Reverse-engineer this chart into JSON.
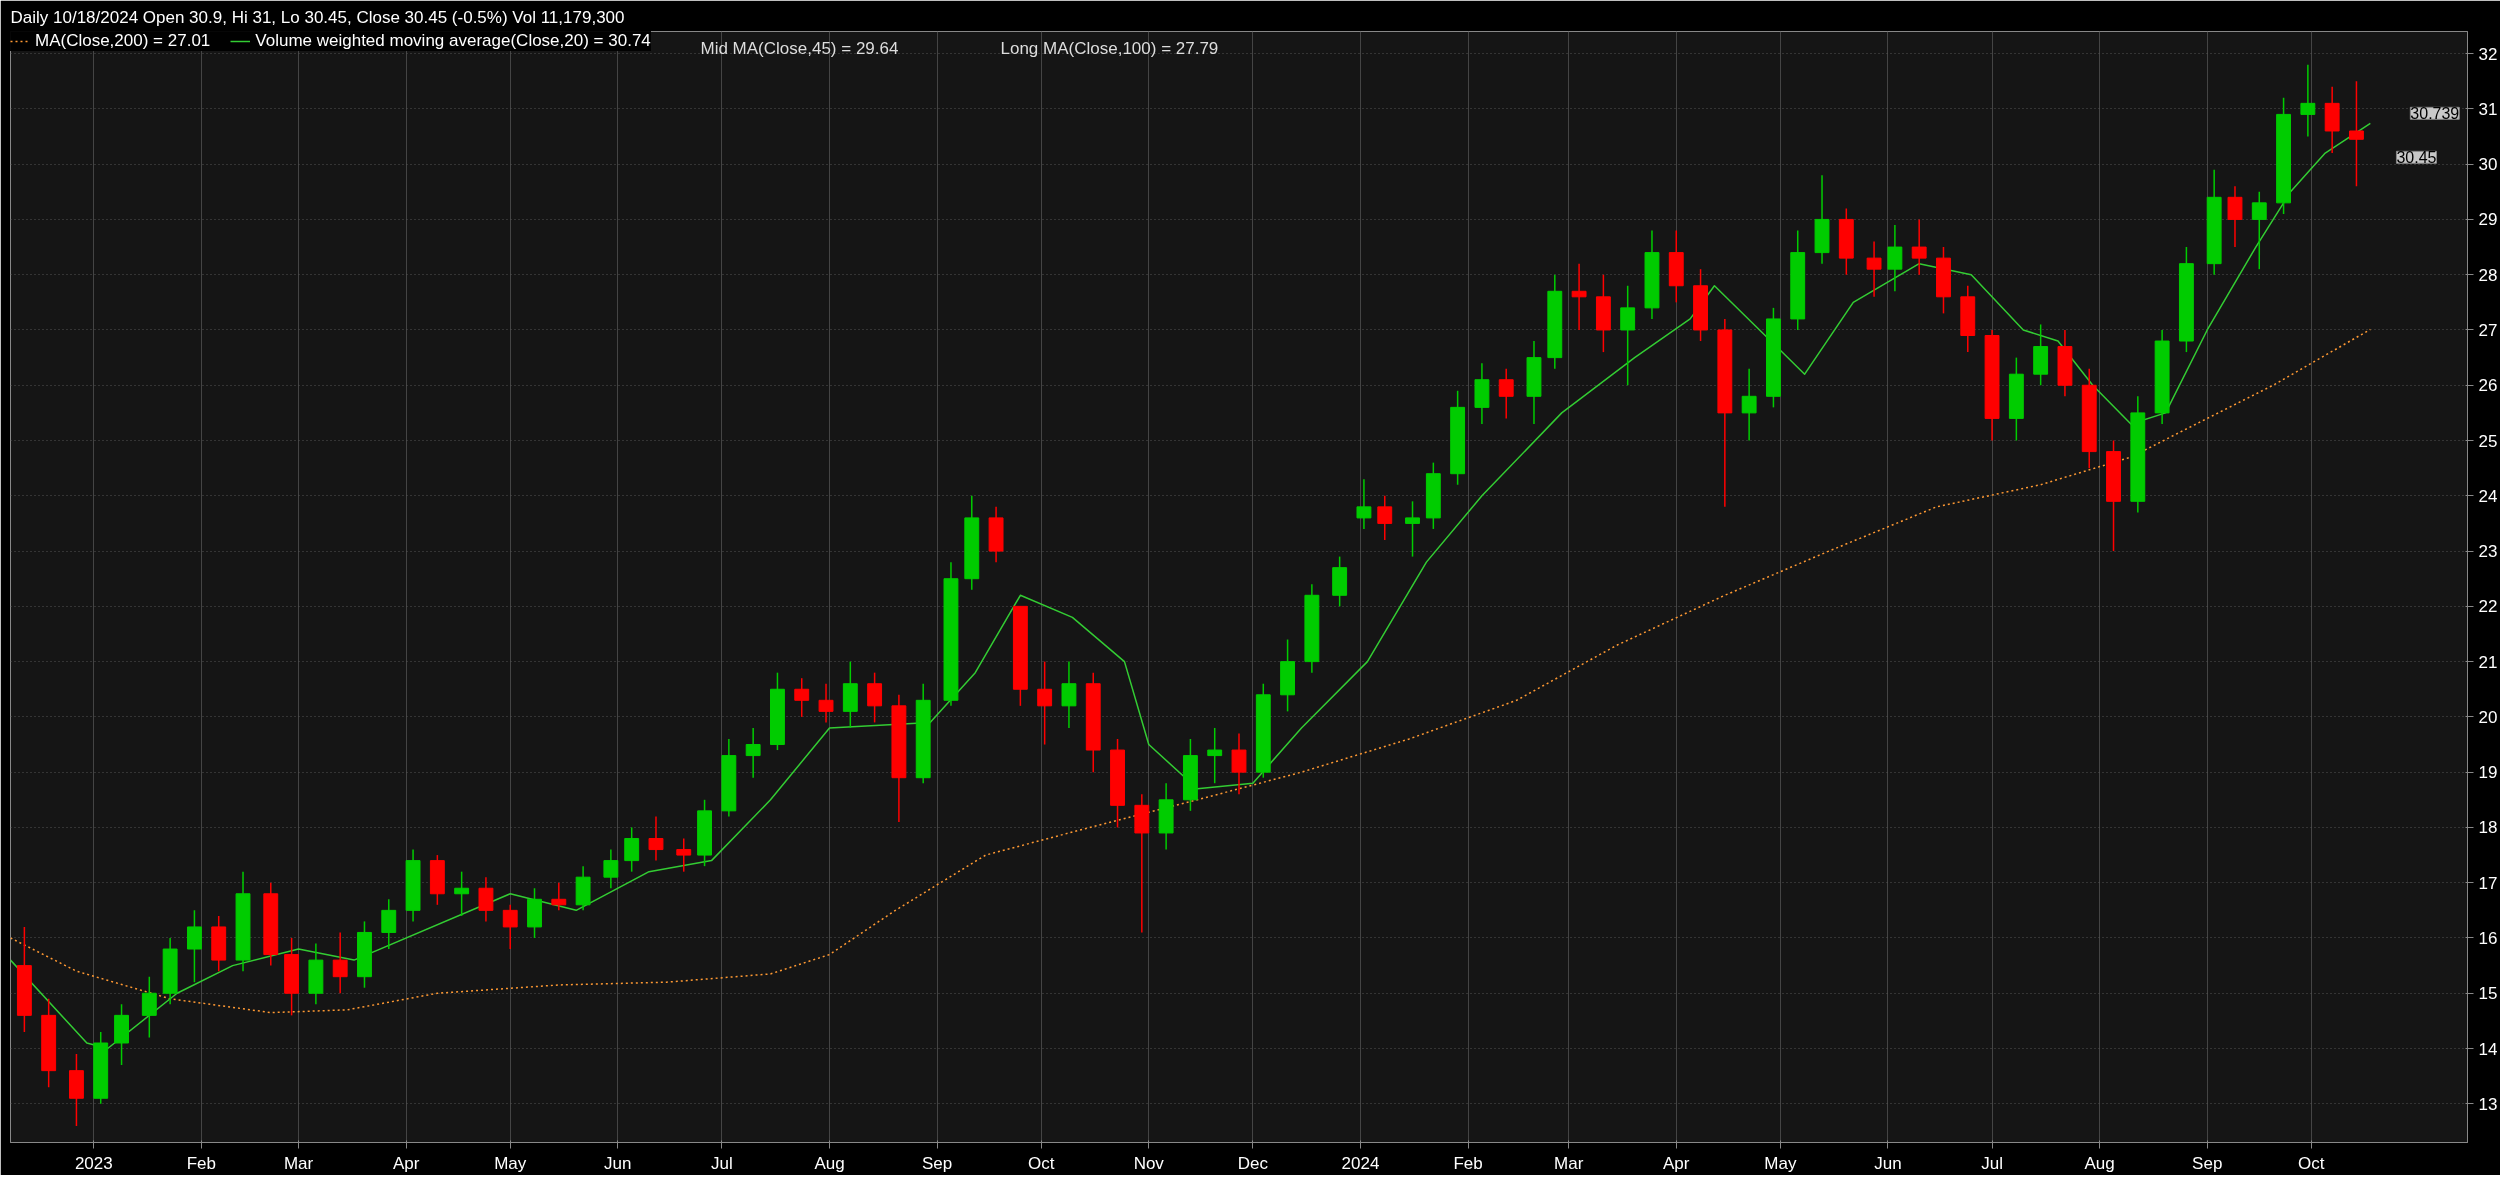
{
  "chart_data": {
    "type": "candlestick",
    "title": "Daily 10/18/2024 Open 30.9, Hi 31, Lo 30.45, Close 30.45 (-0.5%) Vol 11,179,300",
    "x": [
      "2022-12-12",
      "2022-12-19",
      "2022-12-27",
      "2023-01-03",
      "2023-01-09",
      "2023-01-17",
      "2023-01-23",
      "2023-01-30",
      "2023-02-06",
      "2023-02-13",
      "2023-02-21",
      "2023-02-27",
      "2023-03-06",
      "2023-03-13",
      "2023-03-20",
      "2023-03-27",
      "2023-04-03",
      "2023-04-10",
      "2023-04-17",
      "2023-04-24",
      "2023-05-01",
      "2023-05-08",
      "2023-05-15",
      "2023-05-22",
      "2023-05-30",
      "2023-06-05",
      "2023-06-12",
      "2023-06-20",
      "2023-06-26",
      "2023-07-03",
      "2023-07-10",
      "2023-07-17",
      "2023-07-24",
      "2023-07-31",
      "2023-08-07",
      "2023-08-14",
      "2023-08-21",
      "2023-08-28",
      "2023-09-05",
      "2023-09-11",
      "2023-09-18",
      "2023-09-25",
      "2023-10-02",
      "2023-10-09",
      "2023-10-16",
      "2023-10-23",
      "2023-10-30",
      "2023-11-06",
      "2023-11-13",
      "2023-11-20",
      "2023-11-27",
      "2023-12-04",
      "2023-12-11",
      "2023-12-18",
      "2023-12-26",
      "2024-01-02",
      "2024-01-08",
      "2024-01-16",
      "2024-01-22",
      "2024-01-29",
      "2024-02-05",
      "2024-02-12",
      "2024-02-20",
      "2024-02-26",
      "2024-03-04",
      "2024-03-11",
      "2024-03-18",
      "2024-03-25",
      "2024-04-01",
      "2024-04-08",
      "2024-04-15",
      "2024-04-22",
      "2024-04-29",
      "2024-05-06",
      "2024-05-13",
      "2024-05-20",
      "2024-05-28",
      "2024-06-03",
      "2024-06-10",
      "2024-06-17",
      "2024-06-24",
      "2024-07-01",
      "2024-07-08",
      "2024-07-15",
      "2024-07-22",
      "2024-07-29",
      "2024-08-05",
      "2024-08-12",
      "2024-08-19",
      "2024-08-26",
      "2024-09-03",
      "2024-09-09",
      "2024-09-16",
      "2024-09-23",
      "2024-09-30",
      "2024-10-07",
      "2024-10-14"
    ],
    "ohlc": [
      [
        15.5,
        16.2,
        14.3,
        14.6
      ],
      [
        14.6,
        14.9,
        13.3,
        13.6
      ],
      [
        13.6,
        13.9,
        12.6,
        13.1
      ],
      [
        13.1,
        14.3,
        13.0,
        14.1
      ],
      [
        14.1,
        14.8,
        13.7,
        14.6
      ],
      [
        14.6,
        15.3,
        14.2,
        15.0
      ],
      [
        15.0,
        16.0,
        14.8,
        15.8
      ],
      [
        15.8,
        16.5,
        15.2,
        16.2
      ],
      [
        16.2,
        16.4,
        15.4,
        15.6
      ],
      [
        15.6,
        17.2,
        15.4,
        16.8
      ],
      [
        16.8,
        17.0,
        15.5,
        15.7
      ],
      [
        15.7,
        16.0,
        14.6,
        15.0
      ],
      [
        15.0,
        15.9,
        14.8,
        15.6
      ],
      [
        15.6,
        16.1,
        15.0,
        15.3
      ],
      [
        15.3,
        16.3,
        15.1,
        16.1
      ],
      [
        16.1,
        16.7,
        15.8,
        16.5
      ],
      [
        16.5,
        17.6,
        16.3,
        17.4
      ],
      [
        17.4,
        17.5,
        16.6,
        16.8
      ],
      [
        16.8,
        17.2,
        16.4,
        16.9
      ],
      [
        16.9,
        17.1,
        16.3,
        16.5
      ],
      [
        16.5,
        16.6,
        15.8,
        16.2
      ],
      [
        16.2,
        16.9,
        16.0,
        16.7
      ],
      [
        16.7,
        17.0,
        16.5,
        16.6
      ],
      [
        16.6,
        17.3,
        16.5,
        17.1
      ],
      [
        17.1,
        17.6,
        16.9,
        17.4
      ],
      [
        17.4,
        18.0,
        17.2,
        17.8
      ],
      [
        17.8,
        18.2,
        17.4,
        17.6
      ],
      [
        17.6,
        17.8,
        17.2,
        17.5
      ],
      [
        17.5,
        18.5,
        17.3,
        18.3
      ],
      [
        18.3,
        19.6,
        18.2,
        19.3
      ],
      [
        19.3,
        19.8,
        18.9,
        19.5
      ],
      [
        19.5,
        20.8,
        19.4,
        20.5
      ],
      [
        20.5,
        20.7,
        20.0,
        20.3
      ],
      [
        20.3,
        20.6,
        19.9,
        20.1
      ],
      [
        20.1,
        21.0,
        19.8,
        20.6
      ],
      [
        20.6,
        20.8,
        19.9,
        20.2
      ],
      [
        20.2,
        20.4,
        18.1,
        18.9
      ],
      [
        18.9,
        20.6,
        18.8,
        20.3
      ],
      [
        20.3,
        22.8,
        20.2,
        22.5
      ],
      [
        22.5,
        24.0,
        22.3,
        23.6
      ],
      [
        23.6,
        23.8,
        22.8,
        23.0
      ],
      [
        22.0,
        22.0,
        20.2,
        20.5
      ],
      [
        20.5,
        21.0,
        19.5,
        20.2
      ],
      [
        20.2,
        21.0,
        19.8,
        20.6
      ],
      [
        20.6,
        20.8,
        19.0,
        19.4
      ],
      [
        19.4,
        19.6,
        18.0,
        18.4
      ],
      [
        18.4,
        18.6,
        16.1,
        17.9
      ],
      [
        17.9,
        18.8,
        17.6,
        18.5
      ],
      [
        18.5,
        19.6,
        18.3,
        19.3
      ],
      [
        19.3,
        19.8,
        18.8,
        19.4
      ],
      [
        19.4,
        19.7,
        18.6,
        19.0
      ],
      [
        19.0,
        20.6,
        18.9,
        20.4
      ],
      [
        20.4,
        21.4,
        20.1,
        21.0
      ],
      [
        21.0,
        22.4,
        20.8,
        22.2
      ],
      [
        22.2,
        22.9,
        22.0,
        22.7
      ],
      [
        23.6,
        24.3,
        23.4,
        23.8
      ],
      [
        23.8,
        24.0,
        23.2,
        23.5
      ],
      [
        23.5,
        23.9,
        22.9,
        23.6
      ],
      [
        23.6,
        24.6,
        23.4,
        24.4
      ],
      [
        24.4,
        25.9,
        24.2,
        25.6
      ],
      [
        25.6,
        26.4,
        25.3,
        26.1
      ],
      [
        26.1,
        26.3,
        25.4,
        25.8
      ],
      [
        25.8,
        26.8,
        25.3,
        26.5
      ],
      [
        26.5,
        28.0,
        26.3,
        27.7
      ],
      [
        27.7,
        28.2,
        27.0,
        27.6
      ],
      [
        27.6,
        28.0,
        26.6,
        27.0
      ],
      [
        27.0,
        27.8,
        26.0,
        27.4
      ],
      [
        27.4,
        28.8,
        27.2,
        28.4
      ],
      [
        28.4,
        28.8,
        27.5,
        27.8
      ],
      [
        27.8,
        28.1,
        26.8,
        27.0
      ],
      [
        27.0,
        27.2,
        23.8,
        25.5
      ],
      [
        25.5,
        26.3,
        25.0,
        25.8
      ],
      [
        25.8,
        27.4,
        25.6,
        27.2
      ],
      [
        27.2,
        28.8,
        27.0,
        28.4
      ],
      [
        28.4,
        29.8,
        28.2,
        29.0
      ],
      [
        29.0,
        29.2,
        28.0,
        28.3
      ],
      [
        28.3,
        28.6,
        27.6,
        28.1
      ],
      [
        28.1,
        28.9,
        27.7,
        28.5
      ],
      [
        28.5,
        29.0,
        28.0,
        28.3
      ],
      [
        28.3,
        28.5,
        27.3,
        27.6
      ],
      [
        27.6,
        27.8,
        26.6,
        26.9
      ],
      [
        26.9,
        27.0,
        25.0,
        25.4
      ],
      [
        25.4,
        26.5,
        25.0,
        26.2
      ],
      [
        26.2,
        27.1,
        26.0,
        26.7
      ],
      [
        26.7,
        27.0,
        25.8,
        26.0
      ],
      [
        26.0,
        26.3,
        24.5,
        24.8
      ],
      [
        24.8,
        25.0,
        23.0,
        23.9
      ],
      [
        23.9,
        25.8,
        23.7,
        25.5
      ],
      [
        25.5,
        27.0,
        25.3,
        26.8
      ],
      [
        26.8,
        28.5,
        26.6,
        28.2
      ],
      [
        28.2,
        29.9,
        28.0,
        29.4
      ],
      [
        29.4,
        29.6,
        28.5,
        29.0
      ],
      [
        29.0,
        29.5,
        28.1,
        29.3
      ],
      [
        29.3,
        31.2,
        29.1,
        30.9
      ],
      [
        30.9,
        31.8,
        30.5,
        31.1
      ],
      [
        31.1,
        31.4,
        30.2,
        30.6
      ],
      [
        30.6,
        31.5,
        29.6,
        30.45
      ]
    ],
    "colors": [
      "#ff0000",
      "#ff0000",
      "#ff0000",
      "#00cc00",
      "#00cc00",
      "#00cc00",
      "#00cc00",
      "#00cc00",
      "#ff0000",
      "#00cc00",
      "#ff0000",
      "#ff0000",
      "#00cc00",
      "#ff0000",
      "#00cc00",
      "#00cc00",
      "#00cc00",
      "#ff0000",
      "#00cc00",
      "#ff0000",
      "#ff0000",
      "#00cc00",
      "#ff0000",
      "#00cc00",
      "#00cc00",
      "#00cc00",
      "#ff0000",
      "#ff0000",
      "#00cc00",
      "#00cc00",
      "#00cc00",
      "#00cc00",
      "#ff0000",
      "#ff0000",
      "#00cc00",
      "#ff0000",
      "#ff0000",
      "#00cc00",
      "#00cc00",
      "#00cc00",
      "#ff0000",
      "#ff0000",
      "#ff0000",
      "#00cc00",
      "#ff0000",
      "#ff0000",
      "#ff0000",
      "#00cc00",
      "#00cc00",
      "#00cc00",
      "#ff0000",
      "#00cc00",
      "#00cc00",
      "#00cc00",
      "#00cc00",
      "#00cc00",
      "#ff0000",
      "#00cc00",
      "#00cc00",
      "#00cc00",
      "#00cc00",
      "#ff0000",
      "#00cc00",
      "#00cc00",
      "#ff0000",
      "#ff0000",
      "#00cc00",
      "#00cc00",
      "#ff0000",
      "#ff0000",
      "#ff0000",
      "#00cc00",
      "#00cc00",
      "#00cc00",
      "#00cc00",
      "#ff0000",
      "#ff0000",
      "#00cc00",
      "#ff0000",
      "#ff0000",
      "#ff0000",
      "#ff0000",
      "#00cc00",
      "#00cc00",
      "#ff0000",
      "#ff0000",
      "#ff0000",
      "#00cc00",
      "#00cc00",
      "#00cc00",
      "#00cc00",
      "#ff0000",
      "#00cc00",
      "#00cc00",
      "#00cc00",
      "#ff0000",
      "#ff0000"
    ],
    "series": [
      {
        "name": "MA(Close,200) = 27.01",
        "type": "line",
        "line_style": "dotted",
        "color": "#ff9933",
        "x": [
          "2022-12-08",
          "2022-12-27",
          "2023-01-23",
          "2023-02-21",
          "2023-03-15",
          "2023-04-10",
          "2023-05-15",
          "2023-06-15",
          "2023-07-15",
          "2023-08-01",
          "2023-08-20",
          "2023-09-15",
          "2023-10-15",
          "2023-11-15",
          "2023-12-15",
          "2024-01-15",
          "2024-02-15",
          "2024-03-15",
          "2024-04-15",
          "2024-05-15",
          "2024-06-15",
          "2024-07-15",
          "2024-08-10",
          "2024-09-01",
          "2024-09-20",
          "2024-10-18"
        ],
        "values": [
          16.0,
          15.4,
          14.9,
          14.65,
          14.7,
          15.0,
          15.15,
          15.2,
          15.35,
          15.7,
          16.5,
          17.5,
          18.0,
          18.5,
          19.0,
          19.6,
          20.3,
          21.3,
          22.2,
          23.0,
          23.8,
          24.2,
          24.7,
          25.4,
          26.0,
          27.01
        ]
      },
      {
        "name": "Volume weighted moving average(Close,20) = 30.74",
        "type": "line",
        "line_style": "solid",
        "color": "#33cc33",
        "x": [
          "2022-12-08",
          "2022-12-30",
          "2023-01-05",
          "2023-01-25",
          "2023-02-10",
          "2023-03-01",
          "2023-03-17",
          "2023-05-01",
          "2023-05-20",
          "2023-06-10",
          "2023-06-28",
          "2023-07-15",
          "2023-08-01",
          "2023-08-30",
          "2023-09-12",
          "2023-09-25",
          "2023-10-10",
          "2023-10-25",
          "2023-11-01",
          "2023-11-15",
          "2023-12-01",
          "2023-12-15",
          "2024-01-03",
          "2024-01-20",
          "2024-02-05",
          "2024-02-28",
          "2024-03-20",
          "2024-04-05",
          "2024-04-12",
          "2024-04-25",
          "2024-05-08",
          "2024-05-22",
          "2024-06-10",
          "2024-06-25",
          "2024-07-10",
          "2024-07-20",
          "2024-07-30",
          "2024-08-10",
          "2024-08-20",
          "2024-09-01",
          "2024-09-15",
          "2024-09-25",
          "2024-10-05",
          "2024-10-18"
        ],
        "values": [
          15.6,
          14.1,
          14.0,
          15.0,
          15.5,
          15.8,
          15.6,
          16.8,
          16.5,
          17.2,
          17.4,
          18.5,
          19.8,
          19.9,
          20.8,
          22.2,
          21.8,
          21.0,
          19.5,
          18.7,
          18.8,
          19.8,
          21.0,
          22.8,
          24.0,
          25.5,
          26.5,
          27.2,
          27.8,
          27.0,
          26.2,
          27.5,
          28.2,
          28.0,
          27.0,
          26.8,
          26.0,
          25.3,
          25.5,
          27.0,
          28.5,
          29.5,
          30.2,
          30.74
        ]
      }
    ],
    "annotations": [
      "Mid MA(Close,45) = 29.64",
      "Long MA(Close,100) = 27.79",
      {
        "text": "30.739",
        "x": "2024-10-18",
        "y": 30.739
      },
      {
        "text": "30.45",
        "x": "2024-10-14",
        "y": 30.45
      }
    ],
    "xlim": [
      "2022-12-08",
      "2024-11-15"
    ],
    "xticks": [
      {
        "value": "2023-01-01",
        "label": "2023"
      },
      {
        "value": "2023-02-01",
        "label": "Feb"
      },
      {
        "value": "2023-03-01",
        "label": "Mar"
      },
      {
        "value": "2023-04-01",
        "label": "Apr"
      },
      {
        "value": "2023-05-01",
        "label": "May"
      },
      {
        "value": "2023-06-01",
        "label": "Jun"
      },
      {
        "value": "2023-07-01",
        "label": "Jul"
      },
      {
        "value": "2023-08-01",
        "label": "Aug"
      },
      {
        "value": "2023-09-01",
        "label": "Sep"
      },
      {
        "value": "2023-10-01",
        "label": "Oct"
      },
      {
        "value": "2023-11-01",
        "label": "Nov"
      },
      {
        "value": "2023-12-01",
        "label": "Dec"
      },
      {
        "value": "2024-01-01",
        "label": "2024"
      },
      {
        "value": "2024-02-01",
        "label": "Feb"
      },
      {
        "value": "2024-03-01",
        "label": "Mar"
      },
      {
        "value": "2024-04-01",
        "label": "Apr"
      },
      {
        "value": "2024-05-01",
        "label": "May"
      },
      {
        "value": "2024-06-01",
        "label": "Jun"
      },
      {
        "value": "2024-07-01",
        "label": "Jul"
      },
      {
        "value": "2024-08-01",
        "label": "Aug"
      },
      {
        "value": "2024-09-01",
        "label": "Sep"
      },
      {
        "value": "2024-10-01",
        "label": "Oct"
      }
    ],
    "ylim": [
      12.3,
      32.4
    ],
    "yticks": [
      13,
      14,
      15,
      16,
      17,
      18,
      19,
      20,
      21,
      22,
      23,
      24,
      25,
      26,
      27,
      28,
      29,
      30,
      31,
      32
    ],
    "grid": true,
    "legend": "top left"
  }
}
